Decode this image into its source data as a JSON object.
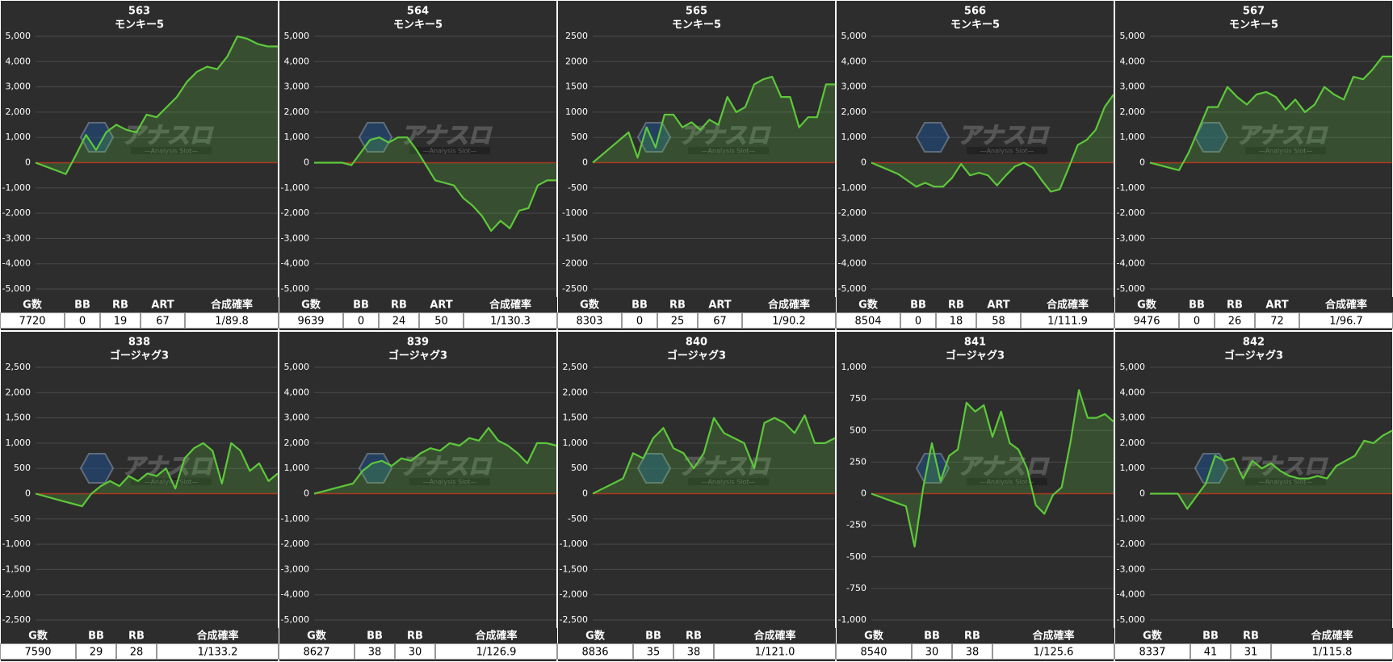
{
  "watermark": {
    "title": "アナスロ",
    "tagline": "—Analysis Slot—"
  },
  "chart_data": [
    {
      "type": "line",
      "title": "563",
      "subtitle": "モンキー5",
      "color": "#5dc83a",
      "ylim": [
        -5000,
        5000
      ],
      "yticks": [
        {
          "value": -5000,
          "label": "-5,000"
        },
        {
          "value": -4000,
          "label": "-4,000"
        },
        {
          "value": -3000,
          "label": "-3,000"
        },
        {
          "value": -2000,
          "label": "-2,000"
        },
        {
          "value": -1000,
          "label": "-1,000"
        },
        0,
        {
          "value": 1000,
          "label": "1,000"
        },
        {
          "value": 2000,
          "label": "2,000"
        },
        {
          "value": 3000,
          "label": "3,000"
        },
        {
          "value": 4000,
          "label": "4,000"
        },
        {
          "value": 5000,
          "label": "5,000"
        }
      ],
      "values": [
        0,
        -150,
        -300,
        -450,
        300,
        1100,
        500,
        1200,
        1500,
        1300,
        1200,
        1900,
        1800,
        2200,
        2600,
        3200,
        3600,
        3800,
        3700,
        4200,
        5000,
        4900,
        4700,
        4600,
        4600
      ]
    },
    {
      "type": "line",
      "title": "564",
      "subtitle": "モンキー5",
      "color": "#5dc83a",
      "ylim": [
        -5000,
        5000
      ],
      "yticks": [
        {
          "value": -5000,
          "label": "-5,000"
        },
        {
          "value": -4000,
          "label": "-4,000"
        },
        {
          "value": -3000,
          "label": "-3,000"
        },
        {
          "value": -2000,
          "label": "-2,000"
        },
        {
          "value": -1000,
          "label": "-1,000"
        },
        0,
        {
          "value": 1000,
          "label": "1,000"
        },
        {
          "value": 2000,
          "label": "2,000"
        },
        {
          "value": 3000,
          "label": "3,000"
        },
        {
          "value": 4000,
          "label": "4,000"
        },
        {
          "value": 5000,
          "label": "5,000"
        }
      ],
      "values": [
        0,
        0,
        0,
        0,
        -100,
        400,
        900,
        1000,
        800,
        1000,
        1000,
        500,
        -100,
        -700,
        -800,
        -900,
        -1400,
        -1700,
        -2100,
        -2700,
        -2300,
        -2600,
        -1900,
        -1800,
        -900,
        -700,
        -700
      ]
    },
    {
      "type": "line",
      "title": "565",
      "subtitle": "モンキー5",
      "color": "#5dc83a",
      "ylim": [
        -2500,
        2500
      ],
      "yticks": [
        -2500,
        -2000,
        -1500,
        -1000,
        -500,
        0,
        500,
        1000,
        1500,
        2000,
        2500
      ],
      "yticklabels_note_free": null,
      "values": [
        0,
        150,
        300,
        450,
        600,
        100,
        700,
        300,
        950,
        950,
        700,
        800,
        650,
        850,
        750,
        1300,
        1000,
        1100,
        1550,
        1650,
        1700,
        1300,
        1300,
        700,
        900,
        900,
        1550,
        1550
      ]
    },
    {
      "type": "line",
      "title": "566",
      "subtitle": "モンキー5",
      "color": "#5dc83a",
      "ylim": [
        -5000,
        5000
      ],
      "yticks": [
        {
          "value": -5000,
          "label": "-5,000"
        },
        {
          "value": -4000,
          "label": "-4,000"
        },
        {
          "value": -3000,
          "label": "-3,000"
        },
        {
          "value": -2000,
          "label": "-2,000"
        },
        {
          "value": -1000,
          "label": "-1,000"
        },
        0,
        {
          "value": 1000,
          "label": "1,000"
        },
        {
          "value": 2000,
          "label": "2,000"
        },
        {
          "value": 3000,
          "label": "3,000"
        },
        {
          "value": 4000,
          "label": "4,000"
        },
        {
          "value": 5000,
          "label": "5,000"
        }
      ],
      "values": [
        0,
        -150,
        -300,
        -450,
        -700,
        -950,
        -800,
        -950,
        -950,
        -600,
        -50,
        -500,
        -400,
        -500,
        -900,
        -500,
        -150,
        0,
        -200,
        -700,
        -1150,
        -1050,
        -200,
        700,
        900,
        1300,
        2200,
        2700
      ]
    },
    {
      "type": "line",
      "title": "567",
      "subtitle": "モンキー5",
      "color": "#5dc83a",
      "ylim": [
        -5000,
        5000
      ],
      "yticks": [
        {
          "value": -5000,
          "label": "-5,000"
        },
        {
          "value": -4000,
          "label": "-4,000"
        },
        {
          "value": -3000,
          "label": "-3,000"
        },
        {
          "value": -2000,
          "label": "-2,000"
        },
        {
          "value": -1000,
          "label": "-1,000"
        },
        0,
        {
          "value": 1000,
          "label": "1,000"
        },
        {
          "value": 2000,
          "label": "2,000"
        },
        {
          "value": 3000,
          "label": "3,000"
        },
        {
          "value": 4000,
          "label": "4,000"
        },
        {
          "value": 5000,
          "label": "5,000"
        }
      ],
      "values": [
        0,
        -100,
        -200,
        -300,
        400,
        1300,
        2200,
        2200,
        3000,
        2600,
        2300,
        2700,
        2800,
        2600,
        2100,
        2500,
        2000,
        2300,
        3000,
        2700,
        2500,
        3400,
        3300,
        3700,
        4200,
        4200
      ]
    },
    {
      "type": "line",
      "title": "838",
      "subtitle": "ゴージャグ3",
      "color": "#5dc83a",
      "ylim": [
        -2500,
        2500
      ],
      "yticks": [
        {
          "value": -2500,
          "label": "-2,500"
        },
        {
          "value": -2000,
          "label": "-2,000"
        },
        {
          "value": -1500,
          "label": "-1,500"
        },
        {
          "value": -1000,
          "label": "-1,000"
        },
        -500,
        0,
        500,
        {
          "value": 1000,
          "label": "1,000"
        },
        {
          "value": 1500,
          "label": "1,500"
        },
        {
          "value": 2000,
          "label": "2,000"
        },
        {
          "value": 2500,
          "label": "2,500"
        }
      ],
      "values": [
        0,
        -50,
        -100,
        -150,
        -200,
        -250,
        0,
        150,
        250,
        150,
        350,
        250,
        400,
        350,
        500,
        100,
        700,
        900,
        1000,
        850,
        200,
        1000,
        850,
        450,
        600,
        250,
        400
      ]
    },
    {
      "type": "line",
      "title": "839",
      "subtitle": "ゴージャグ3",
      "color": "#5dc83a",
      "ylim": [
        -5000,
        5000
      ],
      "yticks": [
        {
          "value": -5000,
          "label": "-5,000"
        },
        {
          "value": -4000,
          "label": "-4,000"
        },
        {
          "value": -3000,
          "label": "-3,000"
        },
        {
          "value": -2000,
          "label": "-2,000"
        },
        {
          "value": -1000,
          "label": "-1,000"
        },
        0,
        {
          "value": 1000,
          "label": "1,000"
        },
        {
          "value": 2000,
          "label": "2,000"
        },
        {
          "value": 3000,
          "label": "3,000"
        },
        {
          "value": 4000,
          "label": "4,000"
        },
        {
          "value": 5000,
          "label": "5,000"
        }
      ],
      "values": [
        0,
        100,
        200,
        300,
        400,
        900,
        1200,
        1300,
        1100,
        1400,
        1300,
        1600,
        1800,
        1700,
        2000,
        1900,
        2200,
        2100,
        2600,
        2100,
        1900,
        1600,
        1200,
        2000,
        2000,
        1900
      ]
    },
    {
      "type": "line",
      "title": "840",
      "subtitle": "ゴージャグ3",
      "color": "#5dc83a",
      "ylim": [
        -2500,
        2500
      ],
      "yticks": [
        {
          "value": -2500,
          "label": "-2,500"
        },
        {
          "value": -2000,
          "label": "-2,000"
        },
        {
          "value": -1500,
          "label": "-1,500"
        },
        {
          "value": -1000,
          "label": "-1,000"
        },
        -500,
        0,
        500,
        {
          "value": 1000,
          "label": "1,000"
        },
        {
          "value": 1500,
          "label": "1,500"
        },
        {
          "value": 2000,
          "label": "2,000"
        },
        {
          "value": 2500,
          "label": "2,500"
        }
      ],
      "values": [
        0,
        100,
        200,
        300,
        800,
        700,
        1100,
        1300,
        900,
        800,
        500,
        800,
        1500,
        1200,
        1100,
        1000,
        500,
        1400,
        1500,
        1400,
        1200,
        1550,
        1000,
        1000,
        1100
      ]
    },
    {
      "type": "line",
      "title": "841",
      "subtitle": "ゴージャグ3",
      "color": "#5dc83a",
      "ylim": [
        -1000,
        1000
      ],
      "yticks": [
        {
          "value": -1000,
          "label": "-1,000"
        },
        -750,
        -500,
        -250,
        0,
        250,
        500,
        750,
        {
          "value": 1000,
          "label": "1,000"
        }
      ],
      "values": [
        0,
        -25,
        -50,
        -75,
        -100,
        -420,
        50,
        400,
        100,
        300,
        350,
        720,
        650,
        700,
        450,
        650,
        400,
        350,
        200,
        -90,
        -160,
        -10,
        50,
        400,
        820,
        600,
        600,
        630,
        570
      ]
    },
    {
      "type": "line",
      "title": "842",
      "subtitle": "ゴージャグ3",
      "color": "#5dc83a",
      "ylim": [
        -5000,
        5000
      ],
      "yticks": [
        {
          "value": -5000,
          "label": "-5,000"
        },
        {
          "value": -4000,
          "label": "-4,000"
        },
        {
          "value": -3000,
          "label": "-3,000"
        },
        {
          "value": -2000,
          "label": "-2,000"
        },
        {
          "value": -1000,
          "label": "-1,000"
        },
        0,
        {
          "value": 1000,
          "label": "1,000"
        },
        {
          "value": 2000,
          "label": "2,000"
        },
        {
          "value": 3000,
          "label": "3,000"
        },
        {
          "value": 4000,
          "label": "4,000"
        },
        {
          "value": 5000,
          "label": "5,000"
        }
      ],
      "values": [
        0,
        0,
        0,
        0,
        -600,
        -100,
        400,
        1500,
        1300,
        1400,
        600,
        1300,
        1000,
        1200,
        900,
        700,
        600,
        600,
        700,
        600,
        1100,
        1300,
        1500,
        2100,
        2000,
        2300,
        2500
      ]
    }
  ],
  "tables": [
    {
      "headers": [
        "G数",
        "BB",
        "RB",
        "ART",
        "合成確率"
      ],
      "row": [
        "7720",
        "0",
        "19",
        "67",
        "1/89.8"
      ]
    },
    {
      "headers": [
        "G数",
        "BB",
        "RB",
        "ART",
        "合成確率"
      ],
      "row": [
        "9639",
        "0",
        "24",
        "50",
        "1/130.3"
      ]
    },
    {
      "headers": [
        "G数",
        "BB",
        "RB",
        "ART",
        "合成確率"
      ],
      "row": [
        "8303",
        "0",
        "25",
        "67",
        "1/90.2"
      ]
    },
    {
      "headers": [
        "G数",
        "BB",
        "RB",
        "ART",
        "合成確率"
      ],
      "row": [
        "8504",
        "0",
        "18",
        "58",
        "1/111.9"
      ]
    },
    {
      "headers": [
        "G数",
        "BB",
        "RB",
        "ART",
        "合成確率"
      ],
      "row": [
        "9476",
        "0",
        "26",
        "72",
        "1/96.7"
      ]
    },
    {
      "headers": [
        "G数",
        "BB",
        "RB",
        "合成確率"
      ],
      "row": [
        "7590",
        "29",
        "28",
        "1/133.2"
      ]
    },
    {
      "headers": [
        "G数",
        "BB",
        "RB",
        "合成確率"
      ],
      "row": [
        "8627",
        "38",
        "30",
        "1/126.9"
      ]
    },
    {
      "headers": [
        "G数",
        "BB",
        "RB",
        "合成確率"
      ],
      "row": [
        "8836",
        "35",
        "38",
        "1/121.0"
      ]
    },
    {
      "headers": [
        "G数",
        "BB",
        "RB",
        "合成確率"
      ],
      "row": [
        "8540",
        "30",
        "38",
        "1/125.6"
      ]
    },
    {
      "headers": [
        "G数",
        "BB",
        "RB",
        "合成確率"
      ],
      "row": [
        "8337",
        "41",
        "31",
        "1/115.8"
      ]
    }
  ]
}
